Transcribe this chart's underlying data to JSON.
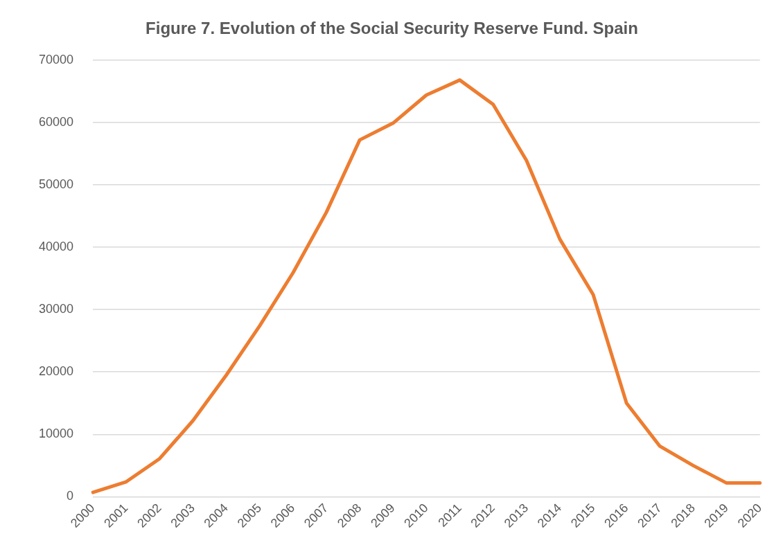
{
  "chart_data": {
    "type": "line",
    "title": "Figure 7. Evolution of the Social Security Reserve Fund. Spain",
    "categories": [
      "2000",
      "2001",
      "2002",
      "2003",
      "2004",
      "2005",
      "2006",
      "2007",
      "2008",
      "2009",
      "2010",
      "2011",
      "2012",
      "2013",
      "2014",
      "2015",
      "2016",
      "2017",
      "2018",
      "2019",
      "2020"
    ],
    "series": [
      {
        "color": "#ed7d31",
        "values": [
          700,
          2400,
          6100,
          12200,
          19500,
          27400,
          35900,
          45600,
          57200,
          59900,
          64400,
          66800,
          62900,
          53900,
          41300,
          32400,
          15000,
          8100,
          5000,
          2200,
          2200
        ]
      }
    ],
    "ylim": [
      0,
      70000
    ],
    "yticks": [
      0,
      10000,
      20000,
      30000,
      40000,
      50000,
      60000,
      70000
    ],
    "grid": "y",
    "legend": false,
    "marker": "none",
    "line_style": "solid"
  }
}
